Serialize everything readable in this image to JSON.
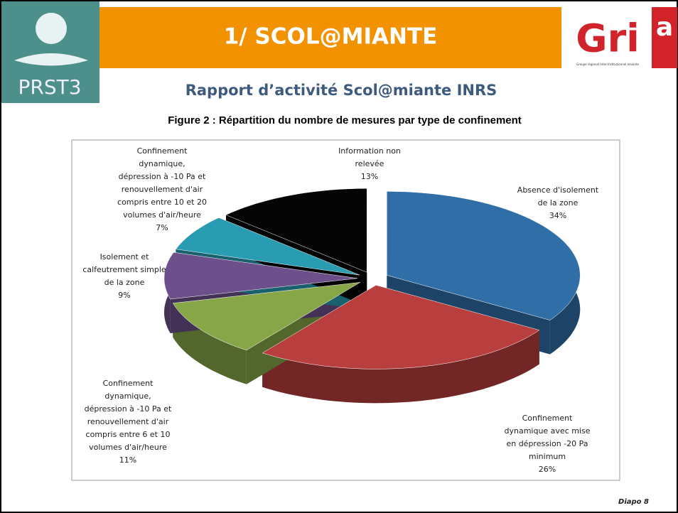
{
  "header": {
    "title": "1/ SCOL@MIANTE",
    "subtitle": "Rapport d’activité Scol@miante INRS",
    "left_logo": "PRST3",
    "right_logo": "Gri",
    "right_logo_suffix": "a",
    "right_logo_caption": "Groupe régional Inter-Institutionnel amiante"
  },
  "footer": "Diapo 8",
  "chart_data": {
    "type": "pie",
    "title": "Figure 2 : Répartition du nombre de mesures par type de confinement",
    "categories": [
      [
        "Absence d'isolement",
        "de la zone"
      ],
      [
        "Confinement",
        "dynamique avec mise",
        "en dépression -20 Pa",
        "minimum"
      ],
      [
        "Confinement",
        "dynamique,",
        "dépression à -10 Pa et",
        "renouvellement d'air",
        "compris entre 6 et 10",
        "volumes d'air/heure"
      ],
      [
        "Isolement et",
        "calfeutrement simple",
        "de la zone"
      ],
      [
        "Confinement",
        "dynamique,",
        "dépression à -10 Pa et",
        "renouvellement d'air",
        "compris entre 10 et 20",
        "volumes d'air/heure"
      ],
      [
        "Information non",
        "relevée"
      ]
    ],
    "values": [
      34,
      26,
      11,
      9,
      7,
      13
    ],
    "value_labels": [
      "34%",
      "26%",
      "11%",
      "9%",
      "7%",
      "13%"
    ],
    "colors": [
      "#2f6ea6",
      "#b83f3e",
      "#86a648",
      "#6c4f8b",
      "#2a9cb2",
      "#050505"
    ]
  }
}
